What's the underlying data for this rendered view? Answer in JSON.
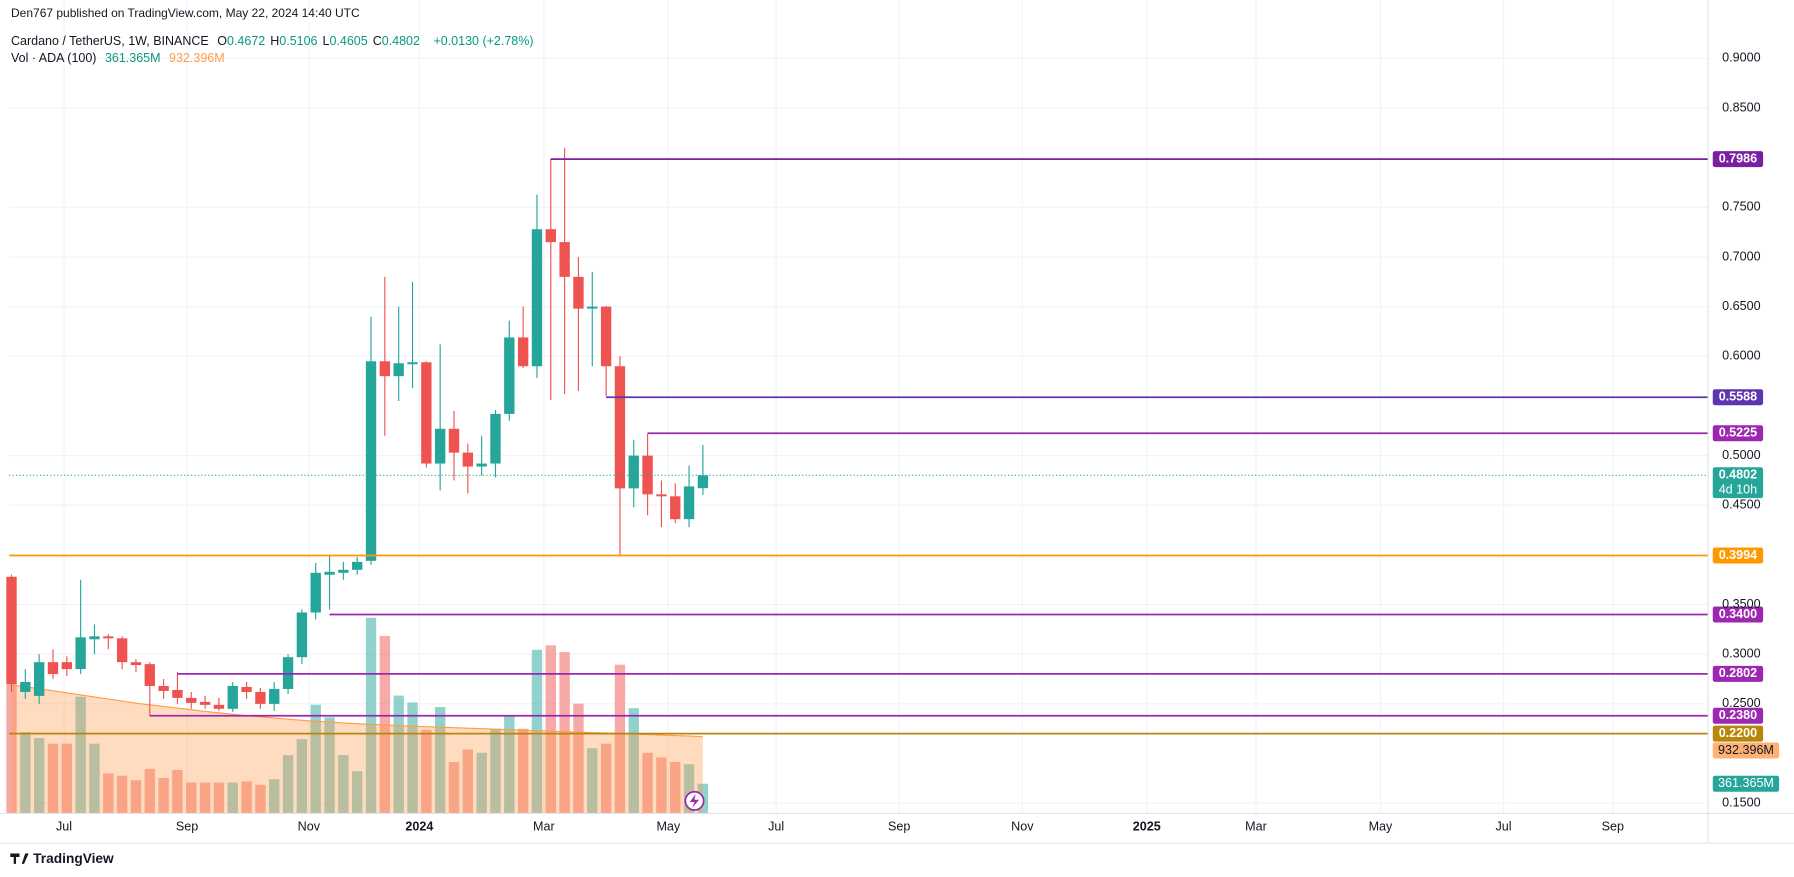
{
  "header": {
    "published": "Den767 published on TradingView.com, May 22, 2024 14:40 UTC",
    "symbol": "Cardano / TetherUS, 1W, BINANCE",
    "ohlc": [
      {
        "key": "O",
        "value": "0.4672"
      },
      {
        "key": "H",
        "value": "0.5106"
      },
      {
        "key": "L",
        "value": "0.4605"
      },
      {
        "key": "C",
        "value": "0.4802"
      }
    ],
    "change": "+0.0130 (+2.78%)",
    "volume_title": "Vol · ADA (100)"
  },
  "footer": "TradingView",
  "chart_data": {
    "type": "candlestick",
    "open": [
      0.378,
      0.262,
      0.258,
      0.292,
      0.292,
      0.285,
      0.315,
      0.318,
      0.316,
      0.292,
      0.29,
      0.268,
      0.264,
      0.256,
      0.252,
      0.249,
      0.245,
      0.267,
      0.262,
      0.25,
      0.265,
      0.297,
      0.342,
      0.38,
      0.382,
      0.385,
      0.394,
      0.595,
      0.58,
      0.592,
      0.594,
      0.492,
      0.527,
      0.503,
      0.489,
      0.492,
      0.542,
      0.619,
      0.59,
      0.728,
      0.715,
      0.68,
      0.648,
      0.65,
      0.59,
      0.467,
      0.5,
      0.461,
      0.459,
      0.436,
      0.4672
    ],
    "high": [
      0.38,
      0.285,
      0.3,
      0.305,
      0.298,
      0.375,
      0.33,
      0.32,
      0.318,
      0.295,
      0.292,
      0.275,
      0.282,
      0.262,
      0.258,
      0.256,
      0.272,
      0.272,
      0.266,
      0.272,
      0.3,
      0.345,
      0.392,
      0.4,
      0.393,
      0.398,
      0.64,
      0.68,
      0.65,
      0.675,
      0.595,
      0.612,
      0.545,
      0.512,
      0.52,
      0.546,
      0.636,
      0.65,
      0.763,
      0.799,
      0.81,
      0.7,
      0.685,
      0.651,
      0.6,
      0.516,
      0.522,
      0.475,
      0.472,
      0.49,
      0.5106
    ],
    "low": [
      0.262,
      0.255,
      0.25,
      0.275,
      0.278,
      0.28,
      0.3,
      0.305,
      0.285,
      0.282,
      0.238,
      0.255,
      0.25,
      0.245,
      0.245,
      0.243,
      0.242,
      0.255,
      0.245,
      0.243,
      0.26,
      0.29,
      0.335,
      0.345,
      0.375,
      0.38,
      0.39,
      0.52,
      0.555,
      0.568,
      0.488,
      0.465,
      0.475,
      0.462,
      0.48,
      0.478,
      0.535,
      0.588,
      0.578,
      0.556,
      0.562,
      0.565,
      0.59,
      0.56,
      0.4,
      0.448,
      0.44,
      0.428,
      0.432,
      0.428,
      0.4605
    ],
    "close": [
      0.27,
      0.272,
      0.292,
      0.28,
      0.285,
      0.317,
      0.318,
      0.316,
      0.292,
      0.289,
      0.268,
      0.263,
      0.256,
      0.251,
      0.249,
      0.245,
      0.268,
      0.262,
      0.25,
      0.265,
      0.297,
      0.342,
      0.382,
      0.383,
      0.385,
      0.393,
      0.595,
      0.58,
      0.593,
      0.594,
      0.492,
      0.527,
      0.503,
      0.489,
      0.492,
      0.542,
      0.619,
      0.59,
      0.728,
      0.715,
      0.68,
      0.648,
      0.65,
      0.59,
      0.467,
      0.5,
      0.461,
      0.459,
      0.436,
      0.469,
      0.4802
    ],
    "volume": [
      1585,
      987,
      917,
      848,
      848,
      1418,
      848,
      487,
      459,
      403,
      542,
      431,
      528,
      375,
      375,
      375,
      375,
      389,
      348,
      417,
      709,
      904,
      1321,
      1168,
      709,
      514,
      2377,
      2155,
      1432,
      1348,
      1015,
      1293,
      626,
      778,
      737,
      1029,
      1182,
      1029,
      1988,
      2043,
      1960,
      1334,
      792,
      848,
      1807,
      1279,
      737,
      681,
      626,
      598,
      361.365
    ],
    "volume_ma": [
      1560,
      1540,
      1515,
      1490,
      1465,
      1440,
      1415,
      1390,
      1365,
      1340,
      1320,
      1300,
      1280,
      1260,
      1240,
      1222,
      1205,
      1190,
      1175,
      1160,
      1145,
      1132,
      1120,
      1110,
      1100,
      1090,
      1082,
      1075,
      1068,
      1060,
      1054,
      1048,
      1042,
      1036,
      1030,
      1024,
      1018,
      1012,
      1006,
      1000,
      994,
      988,
      982,
      976,
      970,
      964,
      958,
      952,
      946,
      940,
      932.396
    ],
    "volume_labels": {
      "last": "361.365M",
      "ma_last": "932.396M"
    },
    "volume_ylim": [
      0,
      9880
    ],
    "up_color": "#26a69a",
    "down_color": "#ef5350",
    "ma_color": "#ff9c4a",
    "countdown": "4d 10h",
    "ylim": [
      0.1396,
      0.9588
    ],
    "yticks": [
      {
        "value": 0.9,
        "label": "0.9000"
      },
      {
        "value": 0.85,
        "label": "0.8500"
      },
      {
        "value": 0.75,
        "label": "0.7500"
      },
      {
        "value": 0.7,
        "label": "0.7000"
      },
      {
        "value": 0.65,
        "label": "0.6500"
      },
      {
        "value": 0.6,
        "label": "0.6000"
      },
      {
        "value": 0.5,
        "label": "0.5000"
      },
      {
        "value": 0.45,
        "label": "0.4500"
      },
      {
        "value": 0.35,
        "label": "0.3500"
      },
      {
        "value": 0.3,
        "label": "0.3000"
      },
      {
        "value": 0.25,
        "label": "0.2500"
      },
      {
        "value": 0.15,
        "label": "0.1500"
      }
    ],
    "xlim": [
      -0.17,
      122.7
    ],
    "xticks": [
      {
        "value": 3.8,
        "label": "Jul"
      },
      {
        "value": 12.7,
        "label": "Sep"
      },
      {
        "value": 21.5,
        "label": "Nov"
      },
      {
        "value": 29.5,
        "label": "2024"
      },
      {
        "value": 38.5,
        "label": "Mar"
      },
      {
        "value": 47.5,
        "label": "May"
      },
      {
        "value": 55.3,
        "label": "Jul"
      },
      {
        "value": 64.2,
        "label": "Sep"
      },
      {
        "value": 73.1,
        "label": "Nov"
      },
      {
        "value": 82.1,
        "label": "2025"
      },
      {
        "value": 90,
        "label": "Mar"
      },
      {
        "value": 99,
        "label": "May"
      },
      {
        "value": 107.9,
        "label": "Jul"
      },
      {
        "value": 115.8,
        "label": "Sep"
      }
    ],
    "grid": true,
    "levels": [
      {
        "price": 0.7986,
        "color": "#7b1fa2",
        "from": 39
      },
      {
        "price": 0.5588,
        "color": "#5e35b1",
        "from": 43
      },
      {
        "price": 0.5225,
        "color": "#9c27b0",
        "from": 46
      },
      {
        "price": 0.3994,
        "color": "#ff9800"
      },
      {
        "price": 0.34,
        "label": "0.3400",
        "color": "#9c27b0",
        "from": 23
      },
      {
        "price": 0.2802,
        "color": "#9c27b0",
        "from": 12
      },
      {
        "price": 0.238,
        "label": "0.2380",
        "color": "#9c27b0",
        "from": 10
      },
      {
        "price": 0.22,
        "label": "0.2200",
        "color": "#b8860b"
      }
    ]
  }
}
